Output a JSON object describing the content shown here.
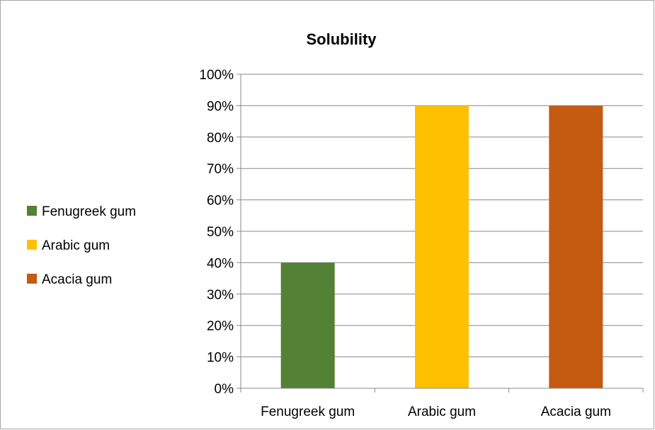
{
  "chart_data": {
    "type": "bar",
    "title": "Solubility",
    "categories": [
      "Fenugreek gum",
      "Arabic gum",
      "Acacia gum"
    ],
    "values": [
      0.4,
      0.9,
      0.9
    ],
    "bar_colors": [
      "#538135",
      "#FFC000",
      "#C55A11"
    ],
    "ylim": [
      0,
      1
    ],
    "y_ticks": [
      "0%",
      "10%",
      "20%",
      "30%",
      "40%",
      "50%",
      "60%",
      "70%",
      "80%",
      "90%",
      "100%"
    ],
    "grid": true,
    "legend": {
      "position": "left",
      "entries": [
        "Fenugreek gum",
        "Arabic gum",
        "Acacia gum"
      ]
    }
  }
}
